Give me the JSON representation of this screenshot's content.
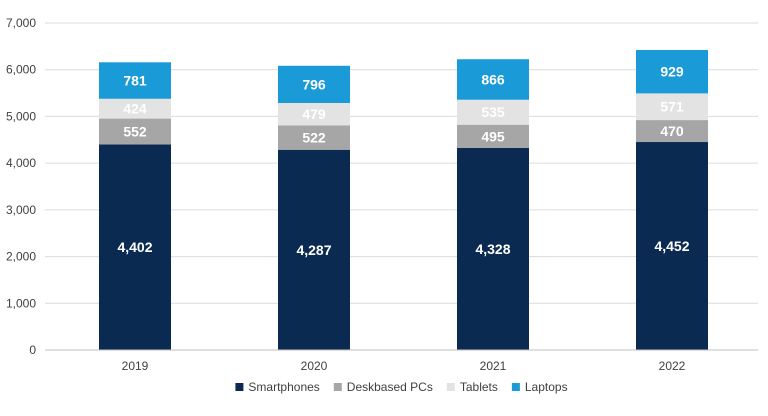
{
  "chart_data": {
    "type": "bar",
    "stacked": true,
    "categories": [
      "2019",
      "2020",
      "2021",
      "2022"
    ],
    "series": [
      {
        "name": "Smartphones",
        "values": [
          4402,
          4287,
          4328,
          4452
        ],
        "color": "#0b2a52",
        "labels": [
          "4,402",
          "4,287",
          "4,328",
          "4,452"
        ]
      },
      {
        "name": "Deskbased PCs",
        "values": [
          552,
          522,
          495,
          470
        ],
        "color": "#a6a6a6",
        "labels": [
          "552",
          "522",
          "495",
          "470"
        ]
      },
      {
        "name": "Tablets",
        "values": [
          424,
          479,
          535,
          571
        ],
        "color": "#e3e3e3",
        "labels": [
          "424",
          "479",
          "535",
          "571"
        ]
      },
      {
        "name": "Laptops",
        "values": [
          781,
          796,
          866,
          929
        ],
        "color": "#1a9ad6",
        "labels": [
          "781",
          "796",
          "866",
          "929"
        ]
      }
    ],
    "ylim": [
      0,
      7000
    ],
    "yticks": [
      0,
      1000,
      2000,
      3000,
      4000,
      5000,
      6000,
      7000
    ],
    "ytick_labels": [
      "0",
      "1,000",
      "2,000",
      "3,000",
      "4,000",
      "5,000",
      "6,000",
      "7,000"
    ],
    "grid": true,
    "legend_position": "bottom",
    "title": "",
    "xlabel": "",
    "ylabel": ""
  }
}
